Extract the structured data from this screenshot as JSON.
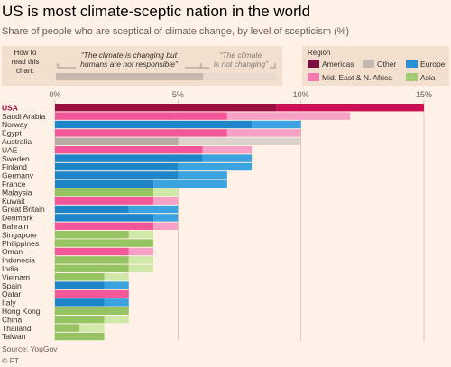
{
  "title": "US is most climate-sceptic nation in the world",
  "subtitle": "Share of people who are sceptical of climate change, by level of scepticism (%)",
  "howto": {
    "label": "How to read this chart:",
    "text1_line1": "“The climate is changing but",
    "text1_line2": "humans are not responsible”",
    "text2_line1": "“The climate",
    "text2_line2": "is not changing”"
  },
  "legend": {
    "title": "Region",
    "items": [
      {
        "label": "Americas",
        "color": "#7a0f3d"
      },
      {
        "label": "Other",
        "color": "#c4b8ae"
      },
      {
        "label": "Europe",
        "color": "#2a8fd0"
      },
      {
        "label": "Mid. East & N. Africa",
        "color": "#f27aae"
      },
      {
        "label": "Asia",
        "color": "#a3cc72"
      }
    ]
  },
  "source": "Source: YouGov",
  "copyright": "© FT",
  "chart_data": {
    "type": "bar",
    "orientation": "horizontal",
    "stacked": true,
    "xlim": [
      0,
      15
    ],
    "xticks": [
      0,
      5,
      10,
      15
    ],
    "xtick_labels": [
      "0%",
      "5%",
      "10%",
      "15%"
    ],
    "grid": true,
    "series": [
      {
        "name": "“The climate is changing but humans are not responsible”",
        "shade": "dark"
      },
      {
        "name": "“The climate is not changing”",
        "shade": "light"
      }
    ],
    "rows": [
      {
        "country": "USA",
        "region": "Americas",
        "values": [
          9,
          6
        ],
        "highlight": true
      },
      {
        "country": "Saudi Arabia",
        "region": "Mid. East & N. Africa",
        "values": [
          7,
          5
        ]
      },
      {
        "country": "Norway",
        "region": "Europe",
        "values": [
          8,
          2
        ]
      },
      {
        "country": "Egypt",
        "region": "Mid. East & N. Africa",
        "values": [
          7,
          3
        ]
      },
      {
        "country": "Australia",
        "region": "Other",
        "values": [
          5,
          5
        ]
      },
      {
        "country": "UAE",
        "region": "Mid. East & N. Africa",
        "values": [
          6,
          2
        ]
      },
      {
        "country": "Sweden",
        "region": "Europe",
        "values": [
          6,
          2
        ]
      },
      {
        "country": "Finland",
        "region": "Europe",
        "values": [
          5,
          3
        ]
      },
      {
        "country": "Germany",
        "region": "Europe",
        "values": [
          5,
          2
        ]
      },
      {
        "country": "France",
        "region": "Europe",
        "values": [
          4,
          3
        ]
      },
      {
        "country": "Malaysia",
        "region": "Asia",
        "values": [
          4,
          1
        ]
      },
      {
        "country": "Kuwait",
        "region": "Mid. East & N. Africa",
        "values": [
          4,
          1
        ]
      },
      {
        "country": "Great Britain",
        "region": "Europe",
        "values": [
          3,
          2
        ]
      },
      {
        "country": "Denmark",
        "region": "Europe",
        "values": [
          4,
          1
        ]
      },
      {
        "country": "Bahrain",
        "region": "Mid. East & N. Africa",
        "values": [
          4,
          1
        ]
      },
      {
        "country": "Singapore",
        "region": "Asia",
        "values": [
          3,
          1
        ]
      },
      {
        "country": "Philippines",
        "region": "Asia",
        "values": [
          4,
          0
        ]
      },
      {
        "country": "Oman",
        "region": "Mid. East & N. Africa",
        "values": [
          3,
          1
        ]
      },
      {
        "country": "Indonesia",
        "region": "Asia",
        "values": [
          3,
          1
        ]
      },
      {
        "country": "India",
        "region": "Asia",
        "values": [
          3,
          1
        ]
      },
      {
        "country": "Vietnam",
        "region": "Asia",
        "values": [
          2,
          1
        ]
      },
      {
        "country": "Spain",
        "region": "Europe",
        "values": [
          2,
          1
        ]
      },
      {
        "country": "Qatar",
        "region": "Mid. East & N. Africa",
        "values": [
          3,
          0
        ]
      },
      {
        "country": "Italy",
        "region": "Europe",
        "values": [
          2,
          1
        ]
      },
      {
        "country": "Hong Kong",
        "region": "Asia",
        "values": [
          3,
          0
        ]
      },
      {
        "country": "China",
        "region": "Asia",
        "values": [
          2,
          1
        ]
      },
      {
        "country": "Thailand",
        "region": "Asia",
        "values": [
          1,
          1
        ]
      },
      {
        "country": "Taiwan",
        "region": "Asia",
        "values": [
          2,
          0
        ]
      }
    ],
    "region_colors": {
      "Americas": [
        "#990f3d",
        "#cc0e55"
      ],
      "Mid. East & N. Africa": [
        "#f2579a",
        "#f7a1c6"
      ],
      "Europe": [
        "#1e86c8",
        "#3aa3e0"
      ],
      "Other": [
        "#b5aba3",
        "#dcd2ca"
      ],
      "Asia": [
        "#96c462",
        "#d0e8a8"
      ]
    }
  }
}
